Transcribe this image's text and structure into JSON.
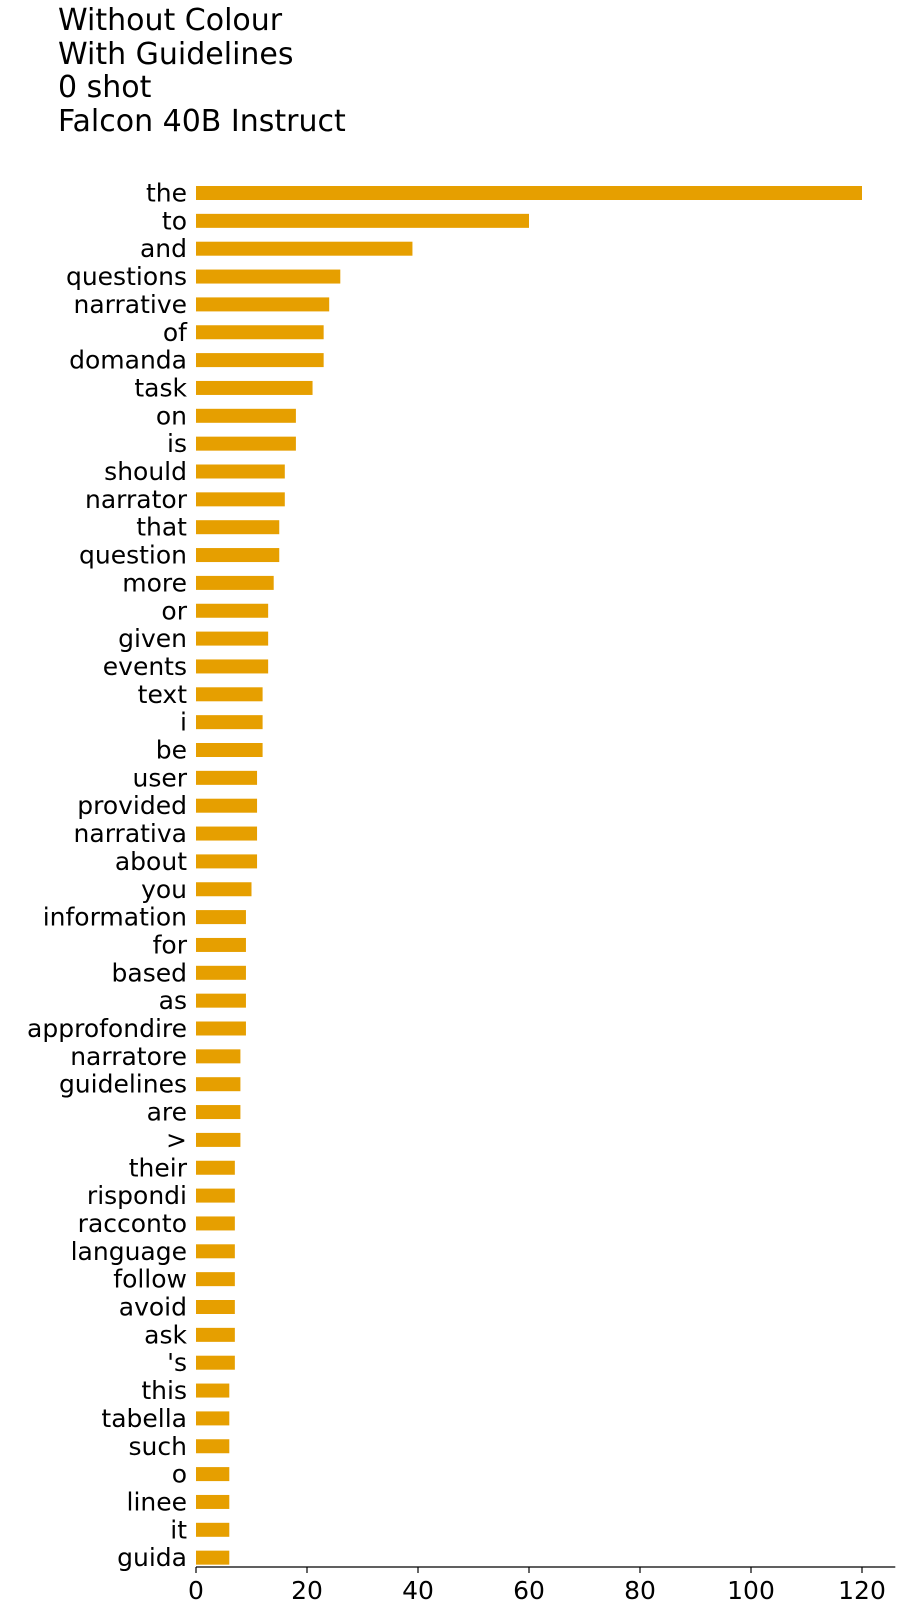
{
  "chart_data": {
    "type": "bar",
    "orientation": "horizontal",
    "title_lines": [
      "Without Colour",
      "With Guidelines",
      "0 shot",
      "Falcon 40B Instruct"
    ],
    "xlabel": "",
    "ylabel": "",
    "xlim": [
      0,
      126
    ],
    "xticks": [
      0,
      20,
      40,
      60,
      80,
      100,
      120
    ],
    "bar_color": "#E69F00",
    "grid": false,
    "categories": [
      "the",
      "to",
      "and",
      "questions",
      "narrative",
      "of",
      "domanda",
      "task",
      "on",
      "is",
      "should",
      "narrator",
      "that",
      "question",
      "more",
      "or",
      "given",
      "events",
      "text",
      "i",
      "be",
      "user",
      "provided",
      "narrativa",
      "about",
      "you",
      "information",
      "for",
      "based",
      "as",
      "approfondire",
      "narratore",
      "guidelines",
      "are",
      ">",
      "their",
      "rispondi",
      "racconto",
      "language",
      "follow",
      "avoid",
      "ask",
      "'s",
      "this",
      "tabella",
      "such",
      "o",
      "linee",
      "it",
      "guida"
    ],
    "values": [
      120,
      60,
      39,
      26,
      24,
      23,
      23,
      21,
      18,
      18,
      16,
      16,
      15,
      15,
      14,
      13,
      13,
      13,
      12,
      12,
      12,
      11,
      11,
      11,
      11,
      10,
      9,
      9,
      9,
      9,
      9,
      8,
      8,
      8,
      8,
      7,
      7,
      7,
      7,
      7,
      7,
      7,
      7,
      6,
      6,
      6,
      6,
      6,
      6,
      6
    ]
  }
}
